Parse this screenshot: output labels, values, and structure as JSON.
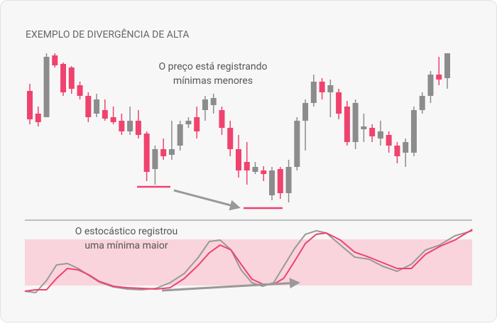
{
  "chart_data": [
    {
      "type": "candlestick",
      "title": "EXEMPLO DE DIVERGÊNCIA DE ALTA",
      "annotation": [
        "O preço está registrando",
        "mínimas menores"
      ],
      "up_color": "#8c8c8c",
      "down_color": "#f0426e",
      "open": [
        172,
        140,
        135,
        222,
        210,
        205,
        180,
        165,
        140,
        145,
        135,
        130,
        115,
        130,
        112,
        62,
        90,
        82,
        95,
        125,
        135,
        145,
        152,
        145,
        120,
        90,
        72,
        58,
        60,
        25,
        62,
        28,
        65,
        130,
        155,
        185,
        170,
        170,
        150,
        100,
        118,
        120,
        105,
        110,
        95,
        85,
        85,
        145,
        165,
        195,
        190
      ],
      "high": [
        182,
        150,
        225,
        225,
        212,
        207,
        185,
        170,
        168,
        160,
        150,
        140,
        150,
        145,
        115,
        95,
        105,
        130,
        130,
        135,
        150,
        165,
        168,
        150,
        130,
        110,
        100,
        72,
        66,
        65,
        65,
        75,
        135,
        160,
        195,
        190,
        188,
        175,
        158,
        160,
        140,
        125,
        130,
        115,
        100,
        105,
        150,
        170,
        200,
        220,
        225
      ],
      "low": [
        125,
        122,
        135,
        205,
        165,
        168,
        160,
        128,
        135,
        130,
        125,
        110,
        110,
        105,
        45,
        40,
        75,
        75,
        88,
        120,
        105,
        130,
        140,
        110,
        80,
        50,
        40,
        55,
        45,
        18,
        20,
        15,
        60,
        88,
        150,
        160,
        135,
        132,
        95,
        90,
        100,
        100,
        95,
        85,
        70,
        65,
        80,
        140,
        155,
        180,
        175
      ],
      "close": [
        132,
        128,
        220,
        208,
        170,
        175,
        165,
        135,
        160,
        133,
        128,
        115,
        130,
        110,
        58,
        90,
        80,
        90,
        125,
        130,
        115,
        160,
        162,
        120,
        90,
        60,
        60,
        65,
        55,
        60,
        28,
        65,
        130,
        155,
        185,
        170,
        180,
        140,
        100,
        155,
        122,
        108,
        115,
        95,
        80,
        100,
        145,
        165,
        195,
        188,
        225
      ]
    },
    {
      "type": "line",
      "annotation": [
        "O estocástico registrou",
        "uma mínima maior"
      ],
      "band": [
        20,
        80
      ],
      "band_color": "#f9d4dc",
      "ylim": [
        0,
        100
      ],
      "x": [
        -0.6,
        0.7,
        2.0,
        3.2,
        4.5,
        5.8,
        7.1,
        8.3,
        10.0,
        11.7,
        13.4,
        15.1,
        16.8,
        18.5,
        20.2,
        21.5,
        22.8,
        24.1,
        25.3,
        26.6,
        27.9,
        29.2,
        30.4,
        31.7,
        33.0,
        34.3,
        35.5,
        37.2,
        38.9,
        40.6,
        42.3,
        44.0,
        45.7,
        47.4,
        49.1,
        50.9,
        53.0
      ],
      "series": [
        {
          "color": "#999999",
          "values": [
            12.6,
            10.8,
            26.5,
            46.8,
            48.6,
            42.2,
            32.9,
            24.6,
            18.2,
            15.4,
            14.5,
            16.3,
            23.7,
            35.7,
            56.9,
            77.2,
            79.1,
            66.2,
            40.3,
            23.7,
            19.1,
            23.7,
            44.9,
            68.0,
            86.5,
            91.1,
            88.3,
            72.6,
            56.9,
            54.2,
            44.9,
            38.5,
            47.7,
            66.2,
            72.6,
            84.6,
            91.1
          ]
        },
        {
          "color": "#f0426e",
          "values": [
            12.6,
            14.5,
            14.5,
            29.2,
            42.2,
            40.3,
            33.8,
            25.5,
            19.1,
            17.2,
            16.3,
            15.4,
            17.2,
            29.2,
            46.8,
            62.5,
            72.6,
            66.2,
            47.7,
            28.3,
            21.8,
            21.8,
            29.2,
            51.4,
            74.5,
            86.5,
            88.3,
            79.1,
            63.4,
            56.9,
            49.5,
            42.2,
            42.2,
            60.6,
            70.8,
            79.1,
            92.9
          ]
        }
      ]
    }
  ]
}
